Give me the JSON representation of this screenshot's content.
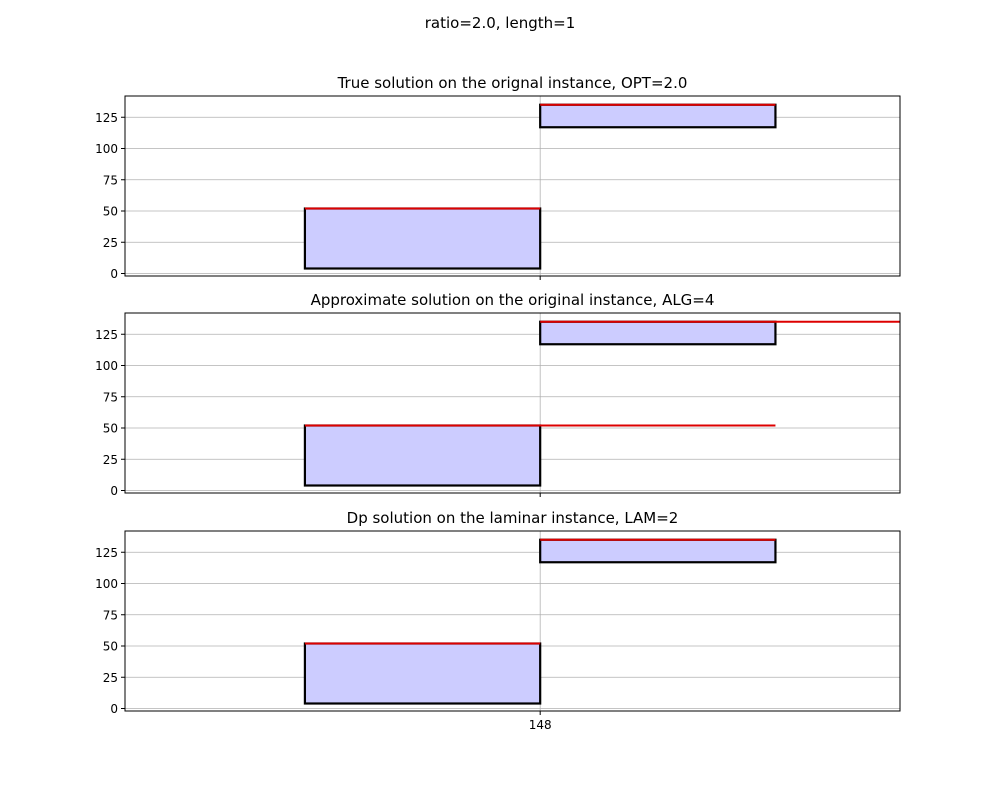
{
  "figure": {
    "suptitle": "ratio=2.0, length=1"
  },
  "chart_data": [
    {
      "type": "bar",
      "title": "True solution on the orignal instance, OPT=2.0",
      "xlabel": "",
      "ylabel": "",
      "xlim": [
        146.5,
        149.3
      ],
      "ylim": [
        -2,
        142
      ],
      "yticks": [
        0,
        25,
        50,
        75,
        100,
        125
      ],
      "xticks": [
        148
      ],
      "xtick_labels": [
        ""
      ],
      "grid": true,
      "boxes": [
        {
          "x0": 147.15,
          "x1": 148,
          "y0": 4,
          "y1": 52
        },
        {
          "x0": 148,
          "x1": 148.85,
          "y0": 117,
          "y1": 135
        }
      ],
      "lines": [
        {
          "x0": 147.15,
          "x1": 148,
          "y": 52
        },
        {
          "x0": 148,
          "x1": 148.85,
          "y": 135
        }
      ]
    },
    {
      "type": "bar",
      "title": "Approximate solution on the original instance, ALG=4",
      "xlabel": "",
      "ylabel": "",
      "xlim": [
        146.5,
        149.3
      ],
      "ylim": [
        -2,
        142
      ],
      "yticks": [
        0,
        25,
        50,
        75,
        100,
        125
      ],
      "xticks": [
        148
      ],
      "xtick_labels": [
        ""
      ],
      "grid": true,
      "boxes": [
        {
          "x0": 147.15,
          "x1": 148,
          "y0": 4,
          "y1": 52
        },
        {
          "x0": 148,
          "x1": 148.85,
          "y0": 117,
          "y1": 135
        }
      ],
      "lines": [
        {
          "x0": 147.15,
          "x1": 148.85,
          "y": 52
        },
        {
          "x0": 148,
          "x1": 149.7,
          "y": 135
        }
      ]
    },
    {
      "type": "bar",
      "title": "Dp solution on the laminar instance, LAM=2",
      "xlabel": "",
      "ylabel": "",
      "xlim": [
        146.5,
        149.3
      ],
      "ylim": [
        -2,
        142
      ],
      "yticks": [
        0,
        25,
        50,
        75,
        100,
        125
      ],
      "xticks": [
        148
      ],
      "xtick_labels": [
        "148"
      ],
      "grid": true,
      "boxes": [
        {
          "x0": 147.15,
          "x1": 148,
          "y0": 4,
          "y1": 52
        },
        {
          "x0": 148,
          "x1": 148.85,
          "y0": 117,
          "y1": 135
        }
      ],
      "lines": [
        {
          "x0": 147.15,
          "x1": 148,
          "y": 52
        },
        {
          "x0": 148,
          "x1": 148.85,
          "y": 135
        }
      ]
    }
  ],
  "colors": {
    "box_fill": "#ccccff",
    "box_edge": "#000000",
    "line": "#dd0000",
    "grid": "#b0b0b0",
    "axes": "#000000"
  }
}
